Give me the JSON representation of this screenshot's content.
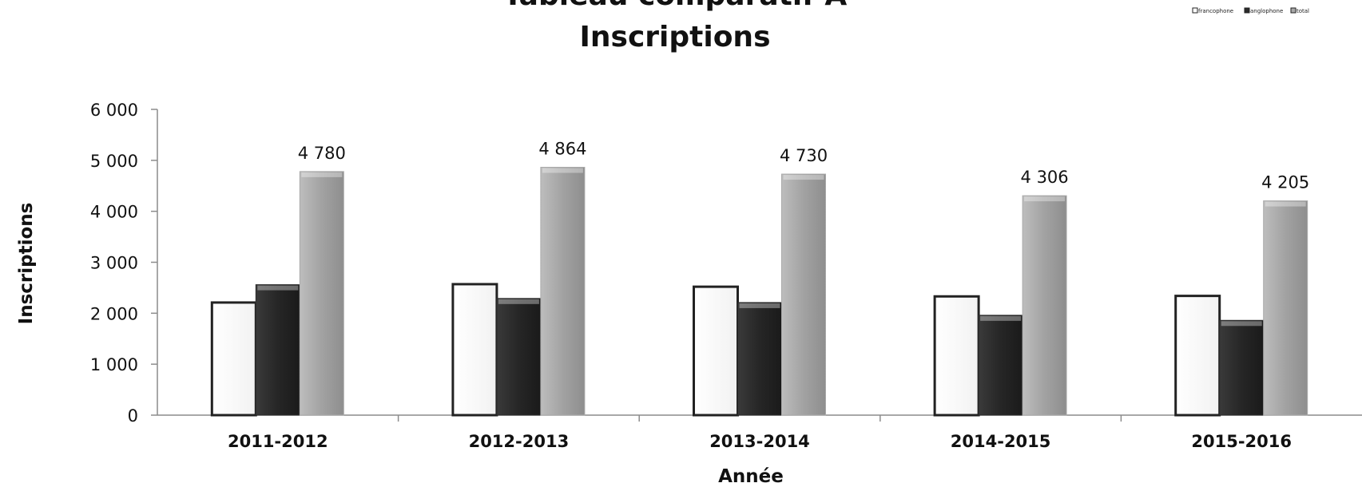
{
  "chart_data": {
    "type": "bar",
    "title_line1": "Tableau comparatif A",
    "title_line2": "Inscriptions",
    "xlabel": "Année",
    "ylabel": "Inscriptions",
    "categories": [
      "2011-2012",
      "2012-2013",
      "2013-2014",
      "2014-2015",
      "2015-2016"
    ],
    "series": [
      {
        "name": "francophone",
        "values": [
          2210,
          2570,
          2520,
          2330,
          2340
        ],
        "color": "#ffffff",
        "stroke": "#222222"
      },
      {
        "name": "anglophone",
        "values": [
          2560,
          2290,
          2210,
          1960,
          1860
        ],
        "color": "#2b2b2b",
        "stroke": "#2b2b2b"
      },
      {
        "name": "total",
        "values": [
          4780,
          4864,
          4730,
          4306,
          4205
        ],
        "color": "#a9a9a9",
        "stroke": "#a9a9a9"
      }
    ],
    "data_labels_total": [
      "4 780",
      "4 864",
      "4 730",
      "4 306",
      "4 205"
    ],
    "ylim": [
      0,
      6000
    ],
    "yticks": [
      0,
      1000,
      2000,
      3000,
      4000,
      5000,
      6000
    ],
    "ytick_labels": [
      "0",
      "1 000",
      "2 000",
      "3 000",
      "4 000",
      "5 000",
      "6 000"
    ],
    "grid": false,
    "legend_position": "top-right"
  }
}
